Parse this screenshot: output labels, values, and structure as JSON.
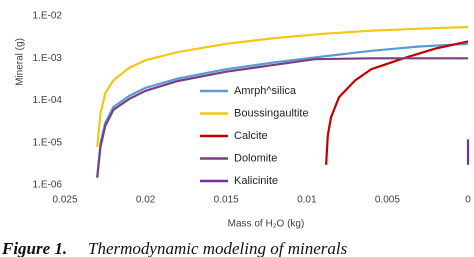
{
  "chart_data": {
    "type": "line",
    "x_label": "Mass of H₂O (kg)",
    "y_label": "Mineral (g)",
    "log_y": true,
    "x_reversed": true,
    "xlim": [
      0.025,
      0
    ],
    "xticks": [
      0.025,
      0.02,
      0.015,
      0.01,
      0.005,
      0
    ],
    "ylim": [
      1e-06,
      0.01
    ],
    "yticks": [
      {
        "value": 0.01,
        "label": "1.E-02"
      },
      {
        "value": 0.001,
        "label": "1.E-03"
      },
      {
        "value": 0.0001,
        "label": "1.E-04"
      },
      {
        "value": 1e-05,
        "label": "1.E-05"
      },
      {
        "value": 1e-06,
        "label": "1.E-06"
      }
    ],
    "series": [
      {
        "name": "Amrph^silica",
        "color": "#5b9bd5",
        "x": [
          0.023,
          0.0228,
          0.0225,
          0.022,
          0.021,
          0.02,
          0.018,
          0.015,
          0.012,
          0.009,
          0.006,
          0.003,
          0
        ],
        "values": [
          1.5e-06,
          1e-05,
          3e-05,
          7e-05,
          0.00013,
          0.0002,
          0.00033,
          0.00055,
          0.0008,
          0.0011,
          0.0015,
          0.0019,
          0.0022
        ]
      },
      {
        "name": "Boussingaultite",
        "color": "#f5c518",
        "x": [
          0.023,
          0.0228,
          0.0225,
          0.022,
          0.021,
          0.02,
          0.018,
          0.015,
          0.012,
          0.009,
          0.006,
          0.003,
          0
        ],
        "values": [
          8e-06,
          5e-05,
          0.00015,
          0.0003,
          0.0006,
          0.0009,
          0.0014,
          0.0022,
          0.003,
          0.0038,
          0.0045,
          0.005,
          0.0055
        ]
      },
      {
        "name": "Calcite",
        "color": "#c00000",
        "x": [
          0.0088,
          0.0087,
          0.0085,
          0.008,
          0.007,
          0.006,
          0.004,
          0.002,
          0
        ],
        "values": [
          3e-06,
          1.5e-05,
          4e-05,
          0.00012,
          0.0003,
          0.00055,
          0.001,
          0.0017,
          0.0025
        ]
      },
      {
        "name": "Dolomite",
        "color": "#7b3f7f",
        "x": [
          0.023,
          0.0228,
          0.0225,
          0.022,
          0.021,
          0.02,
          0.018,
          0.015,
          0.012,
          0.0095,
          0.006,
          0.003,
          0
        ],
        "values": [
          1.5e-06,
          8e-06,
          2.5e-05,
          6e-05,
          0.00011,
          0.00017,
          0.00029,
          0.00048,
          0.0007,
          0.00095,
          0.001,
          0.001,
          0.001
        ]
      },
      {
        "name": "Kalicinite",
        "color": "#7030a0",
        "x": [
          0,
          0
        ],
        "values": [
          3e-06,
          1.2e-05
        ]
      }
    ]
  },
  "caption": {
    "label": "Figure 1.",
    "text": "Thermodynamic modeling of minerals"
  }
}
